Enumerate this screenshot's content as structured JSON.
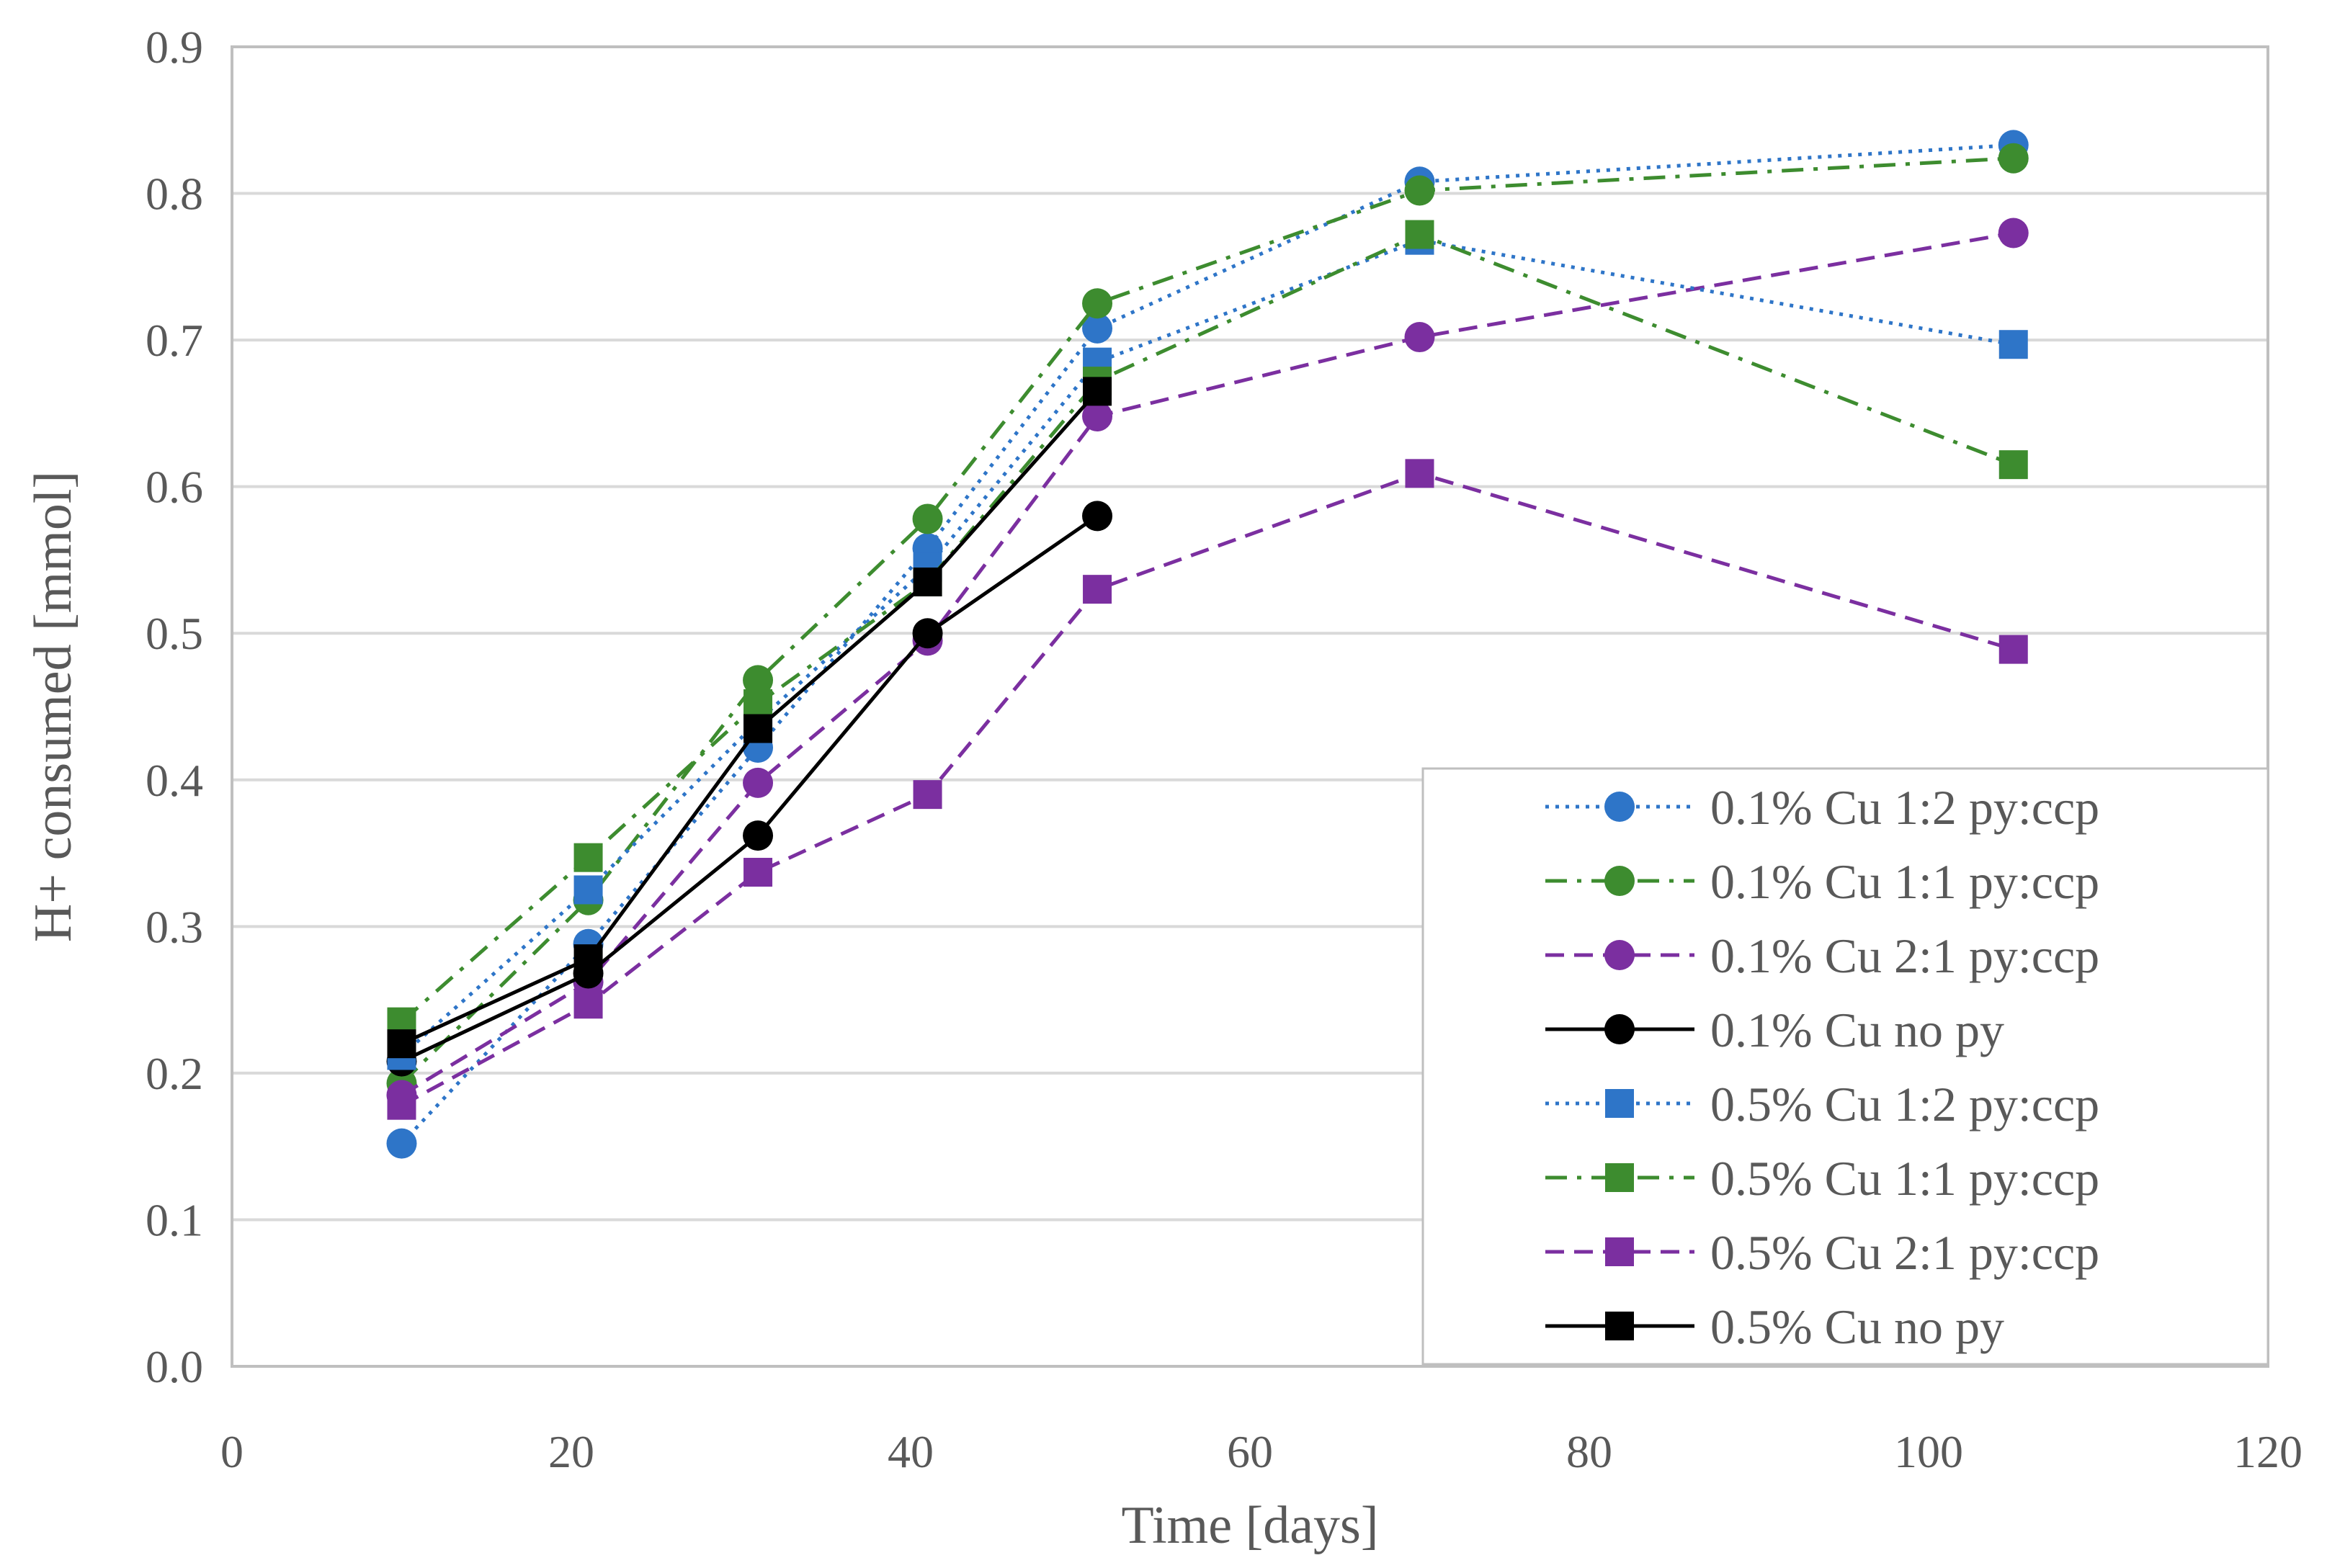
{
  "chart_data": {
    "type": "line",
    "title": "",
    "xlabel": "Time [days]",
    "ylabel": "H+ consumed [mmol]",
    "xlim": [
      0,
      120
    ],
    "ylim": [
      0,
      0.9
    ],
    "xticks": [
      0,
      20,
      40,
      60,
      80,
      100,
      120
    ],
    "xtick_labels": [
      "0",
      "20",
      "40",
      "60",
      "80",
      "100",
      "120"
    ],
    "yticks": [
      0,
      0.1,
      0.2,
      0.3,
      0.4,
      0.5,
      0.6,
      0.7,
      0.8,
      0.9
    ],
    "ytick_labels": [
      "0.0",
      "0.1",
      "0.2",
      "0.3",
      "0.4",
      "0.5",
      "0.6",
      "0.7",
      "0.8",
      "0.9"
    ],
    "grid": "horizontal",
    "legend_position": "bottom-right",
    "series": [
      {
        "name": "0.1% Cu 1:2 py:ccp",
        "color": "#2e75c8",
        "marker": "circle",
        "dash": "dotted",
        "x": [
          10,
          21,
          31,
          41,
          51,
          70,
          105
        ],
        "y": [
          0.152,
          0.288,
          0.422,
          0.558,
          0.708,
          0.808,
          0.833
        ]
      },
      {
        "name": "0.1% Cu 1:1 py:ccp",
        "color": "#3d8c2f",
        "marker": "circle",
        "dash": "dashdot",
        "x": [
          10,
          21,
          31,
          41,
          51,
          70,
          105
        ],
        "y": [
          0.193,
          0.318,
          0.468,
          0.578,
          0.725,
          0.802,
          0.824
        ]
      },
      {
        "name": "0.1% Cu 2:1 py:ccp",
        "color": "#7b2fa0",
        "marker": "circle",
        "dash": "dashed",
        "x": [
          10,
          21,
          31,
          41,
          51,
          70,
          105
        ],
        "y": [
          0.185,
          0.262,
          0.398,
          0.495,
          0.648,
          0.702,
          0.773
        ]
      },
      {
        "name": "0.1% Cu no py",
        "color": "#000000",
        "marker": "circle",
        "dash": "solid",
        "x": [
          10,
          21,
          31,
          41,
          51
        ],
        "y": [
          0.208,
          0.268,
          0.362,
          0.5,
          0.58
        ]
      },
      {
        "name": "0.5% Cu 1:2 py:ccp",
        "color": "#2e75c8",
        "marker": "square",
        "dash": "dotted",
        "x": [
          10,
          21,
          31,
          41,
          51,
          70,
          105
        ],
        "y": [
          0.212,
          0.325,
          0.44,
          0.545,
          0.685,
          0.768,
          0.697
        ]
      },
      {
        "name": "0.5% Cu 1:1 py:ccp",
        "color": "#3d8c2f",
        "marker": "square",
        "dash": "dashdot",
        "x": [
          10,
          21,
          31,
          41,
          51,
          70,
          105
        ],
        "y": [
          0.235,
          0.347,
          0.452,
          0.535,
          0.672,
          0.772,
          0.615
        ]
      },
      {
        "name": "0.5% Cu 2:1 py:ccp",
        "color": "#7b2fa0",
        "marker": "square",
        "dash": "dashed",
        "x": [
          10,
          21,
          31,
          41,
          51,
          70,
          105
        ],
        "y": [
          0.178,
          0.247,
          0.337,
          0.39,
          0.53,
          0.609,
          0.489
        ]
      },
      {
        "name": "0.5% Cu no py",
        "color": "#000000",
        "marker": "square",
        "dash": "solid",
        "x": [
          10,
          21,
          31,
          41,
          51
        ],
        "y": [
          0.22,
          0.278,
          0.435,
          0.535,
          0.665
        ]
      }
    ]
  }
}
